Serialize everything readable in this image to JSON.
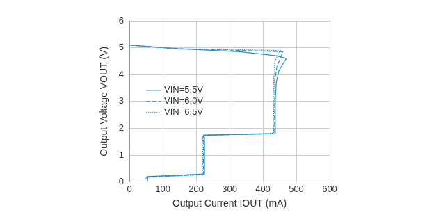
{
  "chart_data": {
    "type": "line",
    "x_label": "Output Current IOUT (mA)",
    "y_label": "Output Voltage VOUT (V)",
    "xlim": [
      0,
      600
    ],
    "xticks": [
      0,
      100,
      200,
      300,
      400,
      500,
      600
    ],
    "ylim": [
      0,
      6
    ],
    "yticks": [
      0,
      1,
      2,
      3,
      4,
      5,
      6
    ],
    "grid": true,
    "legend": "left",
    "series": [
      {
        "name": "VIN=5.5V",
        "color": "#2a8cc4",
        "line_style": "solid",
        "x": [
          0,
          130,
          330,
          440,
          470,
          448,
          440,
          437,
          437,
          437,
          225,
          225,
          225,
          55,
          55
        ],
        "values": [
          5.1,
          4.97,
          4.85,
          4.7,
          4.6,
          4.15,
          3.7,
          3.0,
          2.0,
          1.8,
          1.75,
          1.2,
          0.3,
          0.2,
          0.05
        ]
      },
      {
        "name": "VIN=6.0V",
        "color": "#2a8cc4",
        "line_style": "dashed",
        "x": [
          0,
          150,
          330,
          460,
          442,
          436,
          435,
          435,
          222,
          222,
          222,
          52,
          52
        ],
        "values": [
          5.1,
          4.96,
          4.9,
          4.85,
          4.3,
          3.8,
          2.5,
          1.8,
          1.74,
          1.3,
          0.28,
          0.18,
          0.08
        ]
      },
      {
        "name": "VIN=6.5V",
        "color": "#2a8cc4",
        "line_style": "dotted",
        "x": [
          0,
          150,
          340,
          452,
          436,
          433,
          432,
          432,
          220,
          220,
          220,
          50,
          50
        ],
        "values": [
          5.1,
          4.96,
          4.92,
          4.9,
          4.5,
          3.9,
          2.5,
          1.82,
          1.73,
          1.2,
          0.27,
          0.17,
          0.1
        ]
      }
    ]
  }
}
